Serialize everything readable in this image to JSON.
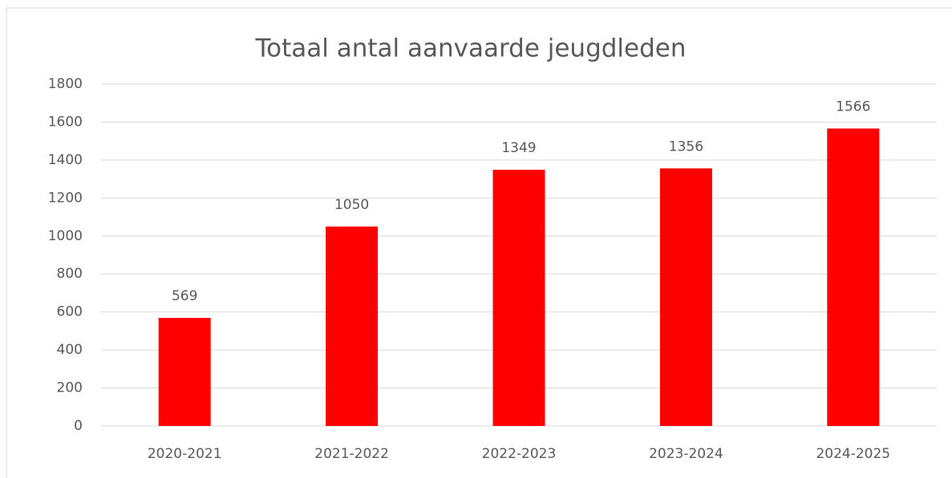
{
  "chart_data": {
    "type": "bar",
    "title": "Totaal antal aanvaarde jeugdleden",
    "categories": [
      "2020-2021",
      "2021-2022",
      "2022-2023",
      "2023-2024",
      "2024-2025"
    ],
    "values": [
      569,
      1050,
      1349,
      1356,
      1566
    ],
    "color": "#ff0000",
    "ylim": [
      0,
      1800
    ],
    "yticks": [
      0,
      200,
      400,
      600,
      800,
      1000,
      1200,
      1400,
      1600,
      1800
    ],
    "grid": true
  }
}
